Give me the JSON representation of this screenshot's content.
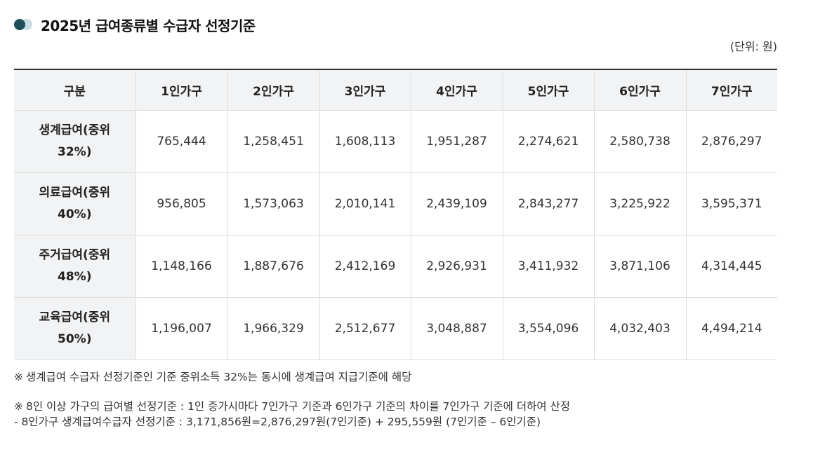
{
  "title": "2025년 급여종류별 수급자 선정기준",
  "unit": "(단위: 원)",
  "table": {
    "headers": [
      "구분",
      "1인가구",
      "2인가구",
      "3인가구",
      "4인가구",
      "5인가구",
      "6인가구",
      "7인가구"
    ],
    "rows": [
      {
        "label_line1": "생계급여(중위",
        "label_line2": "32%)",
        "values": [
          "765,444",
          "1,258,451",
          "1,608,113",
          "1,951,287",
          "2,274,621",
          "2,580,738",
          "2,876,297"
        ]
      },
      {
        "label_line1": "의료급여(중위",
        "label_line2": "40%)",
        "values": [
          "956,805",
          "1,573,063",
          "2,010,141",
          "2,439,109",
          "2,843,277",
          "3,225,922",
          "3,595,371"
        ]
      },
      {
        "label_line1": "주거급여(중위",
        "label_line2": "48%)",
        "values": [
          "1,148,166",
          "1,887,676",
          "2,412,169",
          "2,926,931",
          "3,411,932",
          "3,871,106",
          "4,314,445"
        ]
      },
      {
        "label_line1": "교육급여(중위",
        "label_line2": "50%)",
        "values": [
          "1,196,007",
          "1,966,329",
          "2,512,677",
          "3,048,887",
          "3,554,096",
          "4,032,403",
          "4,494,214"
        ]
      }
    ]
  },
  "notes": {
    "note_mark": "※",
    "note1": "생계급여 수급자 선정기준인 기준 중위소득 32%는 동시에 생계급여 지급기준에 해당",
    "note2": "8인 이상 가구의 급여별 선정기준 : 1인 증가시마다 7인가구 기준과 6인가구 기준의 차이를 7인가구 기준에 더하여 산정",
    "note3": "- 8인가구 생계급여수급자 선정기준 : 3,171,856원=2,876,297원(7인기준) + 295,559원 (7인기준 – 6인기준)"
  },
  "colors": {
    "accent_dark": "#1f4e5a",
    "accent_light": "#c8dde3",
    "header_bg": "#f2f3f5"
  },
  "icons": {
    "title_bullet": "two-dots-icon"
  }
}
